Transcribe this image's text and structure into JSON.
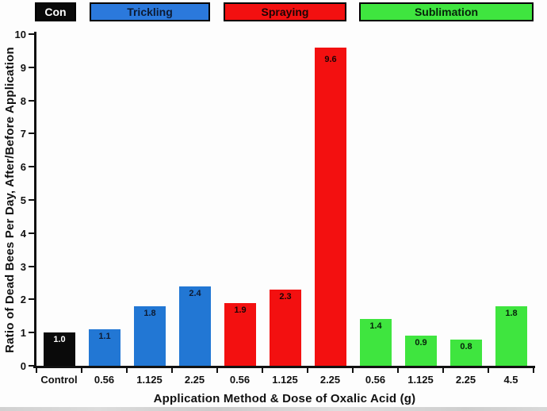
{
  "legend": {
    "items": [
      {
        "label": "Con",
        "color": "#0a0a0a",
        "text_color": "#ffffff"
      },
      {
        "label": "Trickling",
        "color": "#2b79dc",
        "text_color": "#0d1b33"
      },
      {
        "label": "Spraying",
        "color": "#f31010",
        "text_color": "#1a0505"
      },
      {
        "label": "Sublimation",
        "color": "#3fe53f",
        "text_color": "#06220a"
      }
    ]
  },
  "chart_data": {
    "type": "bar",
    "title": "",
    "xlabel": "Application Method & Dose of Oxalic Acid (g)",
    "ylabel": "Ratio of Dead Bees Per Day, After/Before Application",
    "ylim": [
      0,
      10
    ],
    "yticks": [
      "0",
      "1",
      "2",
      "3",
      "4",
      "5",
      "6",
      "7",
      "8",
      "9",
      "10"
    ],
    "grid": false,
    "legend_position": "top",
    "categories": [
      "Control",
      "0.56",
      "1.125",
      "2.25",
      "0.56",
      "1.125",
      "2.25",
      "0.56",
      "1.125",
      "2.25",
      "4.5"
    ],
    "groups": [
      "Control",
      "Trickling",
      "Trickling",
      "Trickling",
      "Spraying",
      "Spraying",
      "Spraying",
      "Sublimation",
      "Sublimation",
      "Sublimation",
      "Sublimation"
    ],
    "values": [
      1.0,
      1.1,
      1.8,
      2.4,
      1.9,
      2.3,
      9.6,
      1.4,
      0.9,
      0.8,
      1.8
    ],
    "bar_labels": [
      "1.0",
      "1.1",
      "1.8",
      "2.4",
      "1.9",
      "2.3",
      "9.6",
      "1.4",
      "0.9",
      "0.8",
      "1.8"
    ],
    "bar_colors": [
      "#0a0a0a",
      "#2277d4",
      "#2277d4",
      "#2277d4",
      "#f31010",
      "#f31010",
      "#f31010",
      "#3fe53f",
      "#3fe53f",
      "#3fe53f",
      "#3fe53f"
    ],
    "bar_label_colors": [
      "#ffffff",
      "#0d1b33",
      "#0d1b33",
      "#0d1b33",
      "#1a0505",
      "#1a0505",
      "#1a0505",
      "#06220a",
      "#06220a",
      "#06220a",
      "#06220a"
    ]
  }
}
